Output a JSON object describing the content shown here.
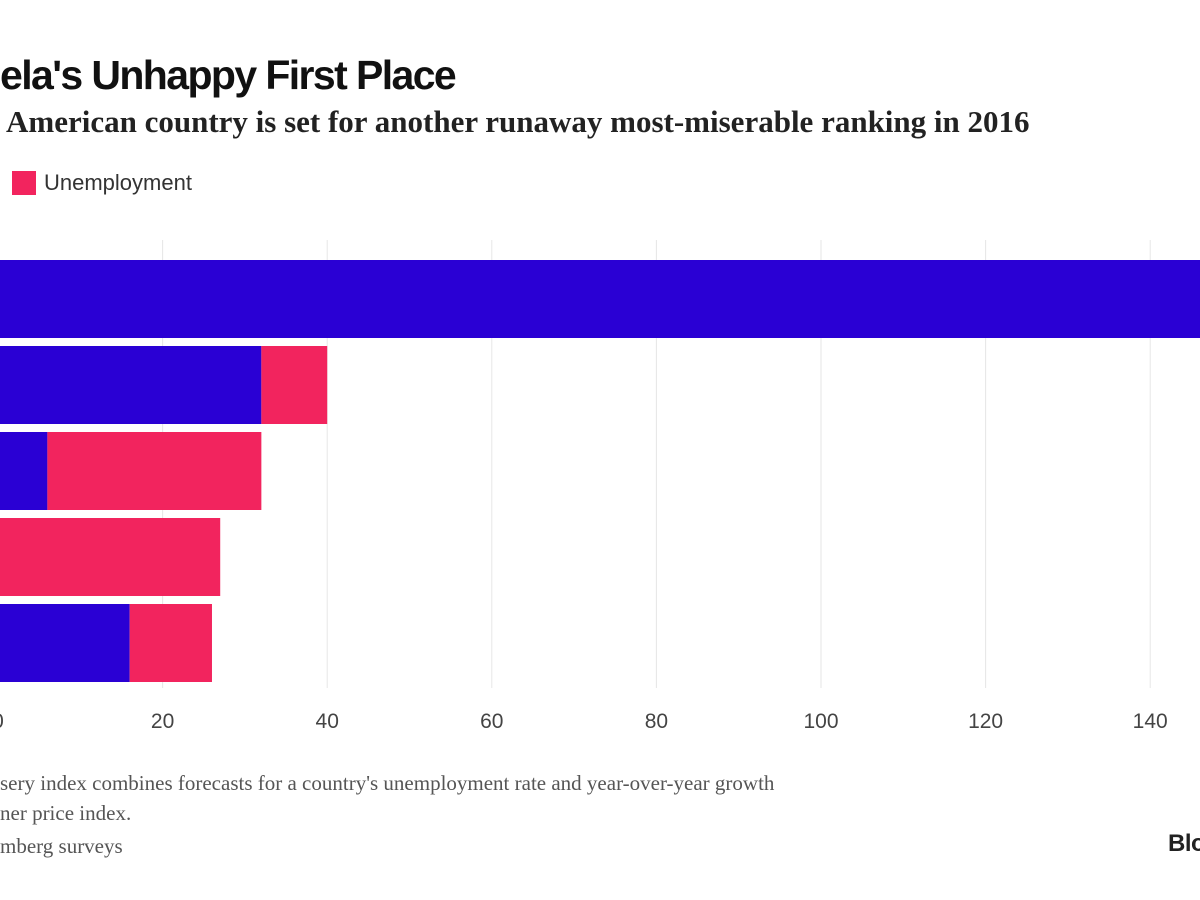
{
  "header": {
    "title": "ela's Unhappy First Place",
    "subtitle": "American country is set for another runaway most-miserable ranking in 2016"
  },
  "legend": {
    "items": [
      {
        "label": "Unemployment",
        "color": "#f2245e"
      }
    ]
  },
  "footer": {
    "note_line1": "sery index combines forecasts for a country's unemployment rate and year-over-year growth",
    "note_line2": "ner price index.",
    "source": "mberg surveys",
    "brand": "Blo"
  },
  "chart_data": {
    "type": "bar",
    "orientation": "horizontal",
    "stacked": true,
    "title": "ela's Unhappy First Place",
    "subtitle": "American country is set for another runaway most-miserable ranking in 2016",
    "xlabel": "",
    "ylabel": "",
    "xlim": [
      0,
      150
    ],
    "xticks": [
      0,
      20,
      40,
      60,
      80,
      100,
      120,
      140
    ],
    "xtick_labels": [
      "0",
      "20",
      "40",
      "60",
      "80",
      "100",
      "120",
      "140"
    ],
    "grid": true,
    "legend_position": "top-left",
    "categories": [
      "",
      "",
      "",
      "",
      ""
    ],
    "series": [
      {
        "color": "#2a00d4",
        "values": [
          160,
          32,
          6,
          0,
          16
        ]
      },
      {
        "name": "Unemployment",
        "color": "#f2245e",
        "values": [
          0,
          8,
          26,
          27,
          10
        ]
      }
    ]
  }
}
